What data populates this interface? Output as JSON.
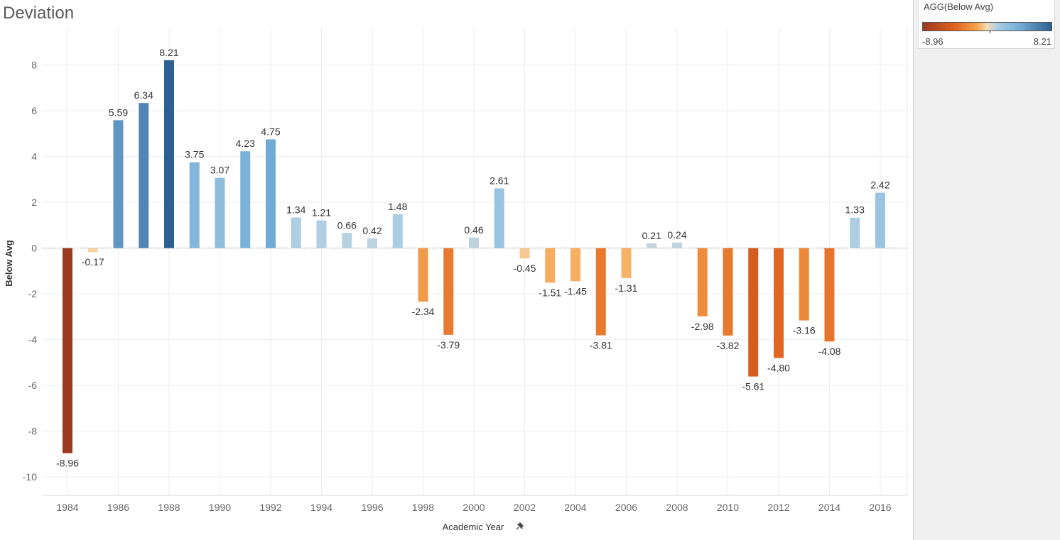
{
  "title": "Deviation",
  "legend": {
    "title": "AGG(Below Avg)",
    "min_label": "-8.96",
    "max_label": "8.21"
  },
  "chart_data": {
    "type": "bar",
    "title": "Deviation",
    "xlabel": "Academic Year",
    "ylabel": "Below Avg",
    "ylim": [
      -10.8,
      9.6
    ],
    "yticks": [
      -10,
      -8,
      -6,
      -4,
      -2,
      0,
      2,
      4,
      6,
      8
    ],
    "xticks": [
      1984,
      1986,
      1988,
      1990,
      1992,
      1994,
      1996,
      1998,
      2000,
      2002,
      2004,
      2006,
      2008,
      2010,
      2012,
      2014,
      2016
    ],
    "categories": [
      1984,
      1985,
      1986,
      1987,
      1988,
      1989,
      1990,
      1991,
      1992,
      1993,
      1994,
      1995,
      1996,
      1997,
      1998,
      1999,
      2000,
      2001,
      2002,
      2003,
      2004,
      2005,
      2006,
      2007,
      2008,
      2009,
      2010,
      2011,
      2012,
      2013,
      2014,
      2015,
      2016
    ],
    "values": [
      -8.96,
      -0.17,
      5.59,
      6.34,
      8.21,
      3.75,
      3.07,
      4.23,
      4.75,
      1.34,
      1.21,
      0.66,
      0.42,
      1.48,
      -2.34,
      -3.79,
      0.46,
      2.61,
      -0.45,
      -1.51,
      -1.45,
      -3.81,
      -1.31,
      0.21,
      0.24,
      -2.98,
      -3.82,
      -5.61,
      -4.8,
      -3.16,
      -4.08,
      1.33,
      2.42
    ],
    "labels": [
      "-8.96",
      "-0.17",
      "5.59",
      "6.34",
      "8.21",
      "3.75",
      "3.07",
      "4.23",
      "4.75",
      "1.34",
      "1.21",
      "0.66",
      "0.42",
      "1.48",
      "-2.34",
      "-3.79",
      "0.46",
      "2.61",
      "-0.45",
      "-1.51",
      "-1.45",
      "-3.81",
      "-1.31",
      "0.21",
      "0.24",
      "-2.98",
      "-3.82",
      "-5.61",
      "-4.80",
      "-3.16",
      "-4.08",
      "1.33",
      "2.42"
    ],
    "grid": true,
    "color_scale": {
      "min": -8.96,
      "max": 8.21,
      "neg_colors": [
        "#f3dcb5",
        "#f7a650",
        "#e0621f",
        "#9c3a1f"
      ],
      "pos_colors": [
        "#c8d6de",
        "#a9cde5",
        "#74aed6",
        "#2e5f93"
      ]
    }
  }
}
